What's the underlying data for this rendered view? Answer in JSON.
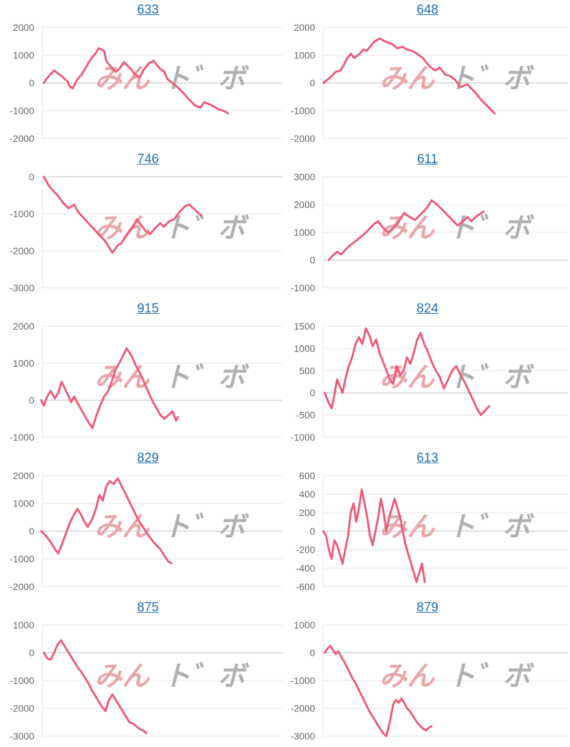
{
  "watermark": {
    "left_text": "みん",
    "right_text": "ト゛ボ",
    "left_color": "#e8a6a8",
    "right_color": "#b0b0b0"
  },
  "colors": {
    "line": "#ee5a78",
    "grid": "#e6e6e6",
    "zero_line": "#bdbdbd",
    "axis_text": "#666666",
    "title": "#1f6fb5"
  },
  "chart_data": [
    {
      "type": "line",
      "title": "633",
      "ylim": [
        -2000,
        2000
      ],
      "ticks": [
        2000,
        1000,
        0,
        -1000,
        -2000
      ],
      "x": [
        0,
        4,
        9,
        15,
        20,
        26,
        30,
        35,
        37,
        42,
        48,
        55,
        60,
        67,
        70,
        75,
        80,
        88,
        91,
        94,
        97,
        105,
        110,
        117,
        127,
        133,
        140,
        145,
        153,
        160,
        170,
        176,
        180,
        190,
        195,
        205,
        212,
        220,
        228,
        234,
        240,
        248,
        255,
        262,
        269
      ],
      "y": [
        0,
        150,
        300,
        450,
        350,
        250,
        150,
        50,
        -100,
        -200,
        100,
        300,
        500,
        800,
        900,
        1050,
        1250,
        1150,
        800,
        700,
        600,
        400,
        500,
        750,
        500,
        300,
        200,
        450,
        700,
        800,
        500,
        400,
        150,
        -50,
        -150,
        -400,
        -600,
        -800,
        -900,
        -700,
        -750,
        -850,
        -950,
        -1000,
        -1100
      ]
    },
    {
      "type": "line",
      "title": "648",
      "ylim": [
        -2000,
        2000
      ],
      "ticks": [
        2000,
        1000,
        0,
        -1000,
        -2000
      ],
      "x": [
        0,
        10,
        18,
        25,
        30,
        35,
        40,
        45,
        53,
        58,
        63,
        68,
        75,
        82,
        90,
        100,
        108,
        115,
        123,
        130,
        137,
        145,
        155,
        163,
        170,
        178,
        185,
        193,
        200,
        210,
        220,
        230,
        240,
        250
      ],
      "y": [
        0,
        200,
        400,
        450,
        650,
        900,
        1050,
        900,
        1050,
        1200,
        1150,
        1300,
        1500,
        1600,
        1500,
        1400,
        1250,
        1300,
        1200,
        1150,
        1050,
        900,
        600,
        450,
        550,
        300,
        250,
        100,
        -150,
        -50,
        -300,
        -600,
        -850,
        -1100
      ]
    },
    {
      "type": "line",
      "title": "746",
      "ylim": [
        -3000,
        0
      ],
      "ticks": [
        0,
        -1000,
        -2000,
        -3000
      ],
      "x": [
        0,
        6,
        12,
        20,
        28,
        36,
        44,
        50,
        60,
        70,
        80,
        90,
        100,
        108,
        113,
        118,
        124,
        130,
        136,
        142,
        148,
        155,
        162,
        170,
        175,
        183,
        190,
        198,
        206,
        212,
        218,
        224,
        230
      ],
      "y": [
        0,
        -200,
        -350,
        -500,
        -700,
        -850,
        -750,
        -950,
        -1150,
        -1350,
        -1550,
        -1750,
        -2050,
        -1850,
        -1800,
        -1650,
        -1500,
        -1350,
        -1150,
        -1300,
        -1450,
        -1550,
        -1400,
        -1250,
        -1350,
        -1200,
        -1150,
        -950,
        -800,
        -750,
        -850,
        -950,
        -1050
      ]
    },
    {
      "type": "line",
      "title": "611",
      "ylim": [
        -1000,
        3000
      ],
      "ticks": [
        3000,
        2000,
        1000,
        0,
        -1000
      ],
      "x": [
        0,
        5,
        12,
        18,
        25,
        32,
        40,
        50,
        58,
        66,
        72,
        78,
        86,
        92,
        96,
        100,
        110,
        118,
        126,
        132,
        140,
        145,
        150,
        158,
        166,
        172,
        180,
        188,
        196,
        202,
        208,
        214,
        220,
        226
      ],
      "y": [
        0,
        150,
        300,
        200,
        400,
        550,
        700,
        900,
        1100,
        1300,
        1400,
        1200,
        1000,
        1100,
        1200,
        1300,
        1700,
        1550,
        1450,
        1600,
        1800,
        1950,
        2150,
        2000,
        1800,
        1650,
        1450,
        1250,
        1400,
        1550,
        1400,
        1550,
        1650,
        1750
      ]
    },
    {
      "type": "line",
      "title": "915",
      "ylim": [
        -1000,
        2000
      ],
      "ticks": [
        2000,
        1000,
        0,
        -1000
      ],
      "x": [
        0,
        4,
        9,
        14,
        20,
        25,
        30,
        35,
        39,
        44,
        48,
        54,
        60,
        66,
        71,
        75,
        80,
        86,
        92,
        98,
        103,
        108,
        114,
        118,
        125,
        132,
        138,
        144,
        150,
        156,
        162,
        168,
        174,
        180,
        186,
        192,
        197,
        200
      ],
      "y": [
        0,
        -150,
        100,
        250,
        50,
        200,
        500,
        300,
        150,
        -50,
        100,
        -100,
        -300,
        -500,
        -650,
        -750,
        -450,
        -150,
        100,
        250,
        500,
        800,
        1000,
        1150,
        1400,
        1200,
        950,
        750,
        500,
        250,
        0,
        -200,
        -400,
        -500,
        -400,
        -300,
        -550,
        -450
      ]
    },
    {
      "type": "line",
      "title": "824",
      "ylim": [
        -1000,
        1500
      ],
      "ticks": [
        1500,
        1000,
        500,
        0,
        -500,
        -1000
      ],
      "x": [
        0,
        5,
        10,
        14,
        18,
        22,
        26,
        30,
        35,
        40,
        45,
        50,
        55,
        60,
        65,
        70,
        75,
        80,
        85,
        90,
        95,
        100,
        105,
        110,
        115,
        120,
        125,
        130,
        135,
        140,
        145,
        150,
        156,
        162,
        168,
        174,
        180,
        186,
        192,
        198,
        204,
        210,
        216,
        222,
        228,
        234,
        240
      ],
      "y": [
        0,
        -200,
        -350,
        -50,
        300,
        150,
        0,
        300,
        600,
        800,
        1100,
        1250,
        1100,
        1450,
        1300,
        1050,
        1200,
        900,
        700,
        500,
        300,
        200,
        600,
        400,
        500,
        800,
        650,
        900,
        1200,
        1350,
        1100,
        950,
        700,
        500,
        350,
        100,
        300,
        500,
        600,
        400,
        250,
        50,
        -150,
        -350,
        -500,
        -400,
        -300
      ]
    },
    {
      "type": "line",
      "title": "829",
      "ylim": [
        -2000,
        2000
      ],
      "ticks": [
        2000,
        1000,
        0,
        -1000,
        -2000
      ],
      "x": [
        0,
        8,
        14,
        20,
        25,
        30,
        36,
        42,
        48,
        53,
        58,
        63,
        68,
        74,
        80,
        85,
        90,
        95,
        100,
        106,
        112,
        118,
        124,
        130,
        136,
        142,
        150,
        158,
        166,
        174,
        180,
        186,
        190
      ],
      "y": [
        0,
        -200,
        -400,
        -650,
        -800,
        -500,
        -100,
        300,
        600,
        800,
        600,
        350,
        150,
        400,
        800,
        1300,
        1100,
        1600,
        1800,
        1700,
        1900,
        1600,
        1300,
        1000,
        700,
        400,
        100,
        -200,
        -450,
        -650,
        -900,
        -1100,
        -1150
      ]
    },
    {
      "type": "line",
      "title": "613",
      "ylim": [
        -600,
        600
      ],
      "ticks": [
        600,
        400,
        200,
        0,
        -200,
        -400,
        -600
      ],
      "x": [
        0,
        4,
        8,
        12,
        16,
        20,
        24,
        28,
        32,
        36,
        40,
        44,
        48,
        52,
        56,
        60,
        64,
        68,
        72,
        76,
        80,
        84,
        88,
        92,
        96,
        100,
        104,
        108,
        112,
        116,
        120,
        124,
        128,
        132,
        136,
        140,
        144,
        148
      ],
      "y": [
        0,
        -50,
        -200,
        -300,
        -100,
        -150,
        -250,
        -350,
        -200,
        -50,
        200,
        300,
        100,
        250,
        450,
        300,
        150,
        -50,
        -150,
        0,
        150,
        350,
        200,
        0,
        150,
        250,
        350,
        250,
        150,
        0,
        -150,
        -250,
        -350,
        -450,
        -550,
        -450,
        -350,
        -550
      ]
    },
    {
      "type": "line",
      "title": "875",
      "ylim": [
        -3000,
        1000
      ],
      "ticks": [
        1000,
        0,
        -1000,
        -2000,
        -3000
      ],
      "x": [
        0,
        5,
        10,
        15,
        20,
        25,
        30,
        35,
        40,
        45,
        50,
        55,
        60,
        65,
        70,
        75,
        80,
        85,
        90,
        95,
        100,
        105,
        110,
        115,
        120,
        125,
        130,
        135,
        140,
        145,
        150
      ],
      "y": [
        0,
        -200,
        -250,
        0,
        300,
        450,
        250,
        50,
        -150,
        -350,
        -550,
        -700,
        -900,
        -1100,
        -1350,
        -1550,
        -1750,
        -1950,
        -2100,
        -1700,
        -1500,
        -1700,
        -1900,
        -2100,
        -2300,
        -2500,
        -2550,
        -2650,
        -2750,
        -2800,
        -2900
      ]
    },
    {
      "type": "line",
      "title": "879",
      "ylim": [
        -3000,
        1000
      ],
      "ticks": [
        1000,
        0,
        -1000,
        -2000,
        -3000
      ],
      "x": [
        0,
        4,
        8,
        12,
        16,
        20,
        24,
        28,
        32,
        36,
        40,
        45,
        50,
        55,
        60,
        65,
        70,
        75,
        80,
        85,
        90,
        95,
        100,
        104,
        108,
        112,
        116,
        120,
        124,
        128,
        132,
        136,
        140,
        144,
        148,
        152,
        156
      ],
      "y": [
        0,
        150,
        250,
        100,
        -50,
        50,
        -150,
        -300,
        -500,
        -700,
        -900,
        -1100,
        -1350,
        -1600,
        -1850,
        -2100,
        -2300,
        -2500,
        -2700,
        -2900,
        -3000,
        -2500,
        -1850,
        -1700,
        -1800,
        -1650,
        -1800,
        -2000,
        -2100,
        -2250,
        -2400,
        -2550,
        -2650,
        -2750,
        -2800,
        -2700,
        -2650
      ]
    }
  ]
}
